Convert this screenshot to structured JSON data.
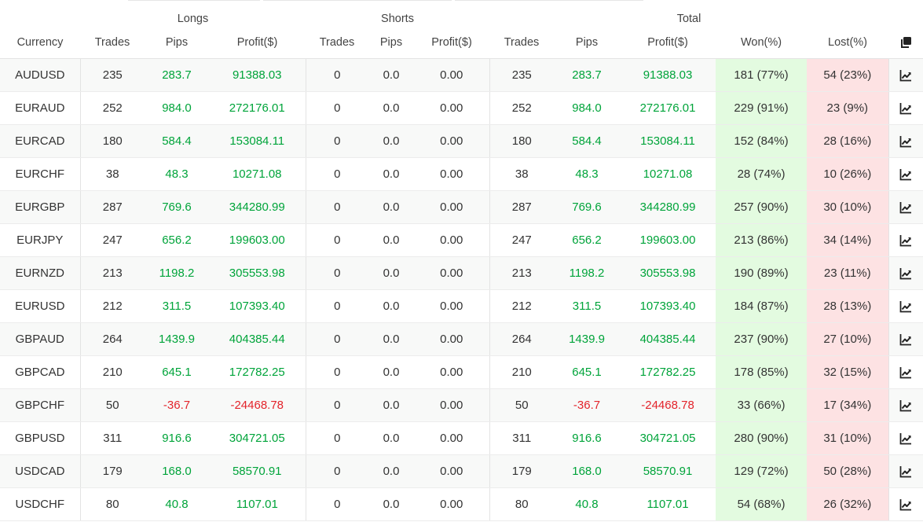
{
  "header": {
    "groups": {
      "longs": "Longs",
      "shorts": "Shorts",
      "total": "Total"
    },
    "columns": {
      "currency": "Currency",
      "longs_trades": "Trades",
      "longs_pips": "Pips",
      "longs_profit": "Profit($)",
      "shorts_trades": "Trades",
      "shorts_pips": "Pips",
      "shorts_profit": "Profit($)",
      "total_trades": "Trades",
      "total_pips": "Pips",
      "total_profit": "Profit($)",
      "won": "Won(%)",
      "lost": "Lost(%)"
    },
    "copy_icon": "copy-icon"
  },
  "colors": {
    "positive": "#00a43a",
    "negative": "#e3242b",
    "won_bg": "#e3fbe0",
    "lost_bg": "#fde2e3"
  },
  "rows": [
    {
      "currency": "AUDUSD",
      "l_trades": "235",
      "l_pips": "283.7",
      "l_profit": "91388.03",
      "s_trades": "0",
      "s_pips": "0.0",
      "s_profit": "0.00",
      "t_trades": "235",
      "t_pips": "283.7",
      "t_profit": "91388.03",
      "won": "181 (77%)",
      "lost": "54 (23%)",
      "sign": "pos"
    },
    {
      "currency": "EURAUD",
      "l_trades": "252",
      "l_pips": "984.0",
      "l_profit": "272176.01",
      "s_trades": "0",
      "s_pips": "0.0",
      "s_profit": "0.00",
      "t_trades": "252",
      "t_pips": "984.0",
      "t_profit": "272176.01",
      "won": "229 (91%)",
      "lost": "23 (9%)",
      "sign": "pos"
    },
    {
      "currency": "EURCAD",
      "l_trades": "180",
      "l_pips": "584.4",
      "l_profit": "153084.11",
      "s_trades": "0",
      "s_pips": "0.0",
      "s_profit": "0.00",
      "t_trades": "180",
      "t_pips": "584.4",
      "t_profit": "153084.11",
      "won": "152 (84%)",
      "lost": "28 (16%)",
      "sign": "pos"
    },
    {
      "currency": "EURCHF",
      "l_trades": "38",
      "l_pips": "48.3",
      "l_profit": "10271.08",
      "s_trades": "0",
      "s_pips": "0.0",
      "s_profit": "0.00",
      "t_trades": "38",
      "t_pips": "48.3",
      "t_profit": "10271.08",
      "won": "28 (74%)",
      "lost": "10 (26%)",
      "sign": "pos"
    },
    {
      "currency": "EURGBP",
      "l_trades": "287",
      "l_pips": "769.6",
      "l_profit": "344280.99",
      "s_trades": "0",
      "s_pips": "0.0",
      "s_profit": "0.00",
      "t_trades": "287",
      "t_pips": "769.6",
      "t_profit": "344280.99",
      "won": "257 (90%)",
      "lost": "30 (10%)",
      "sign": "pos"
    },
    {
      "currency": "EURJPY",
      "l_trades": "247",
      "l_pips": "656.2",
      "l_profit": "199603.00",
      "s_trades": "0",
      "s_pips": "0.0",
      "s_profit": "0.00",
      "t_trades": "247",
      "t_pips": "656.2",
      "t_profit": "199603.00",
      "won": "213 (86%)",
      "lost": "34 (14%)",
      "sign": "pos"
    },
    {
      "currency": "EURNZD",
      "l_trades": "213",
      "l_pips": "1198.2",
      "l_profit": "305553.98",
      "s_trades": "0",
      "s_pips": "0.0",
      "s_profit": "0.00",
      "t_trades": "213",
      "t_pips": "1198.2",
      "t_profit": "305553.98",
      "won": "190 (89%)",
      "lost": "23 (11%)",
      "sign": "pos"
    },
    {
      "currency": "EURUSD",
      "l_trades": "212",
      "l_pips": "311.5",
      "l_profit": "107393.40",
      "s_trades": "0",
      "s_pips": "0.0",
      "s_profit": "0.00",
      "t_trades": "212",
      "t_pips": "311.5",
      "t_profit": "107393.40",
      "won": "184 (87%)",
      "lost": "28 (13%)",
      "sign": "pos"
    },
    {
      "currency": "GBPAUD",
      "l_trades": "264",
      "l_pips": "1439.9",
      "l_profit": "404385.44",
      "s_trades": "0",
      "s_pips": "0.0",
      "s_profit": "0.00",
      "t_trades": "264",
      "t_pips": "1439.9",
      "t_profit": "404385.44",
      "won": "237 (90%)",
      "lost": "27 (10%)",
      "sign": "pos"
    },
    {
      "currency": "GBPCAD",
      "l_trades": "210",
      "l_pips": "645.1",
      "l_profit": "172782.25",
      "s_trades": "0",
      "s_pips": "0.0",
      "s_profit": "0.00",
      "t_trades": "210",
      "t_pips": "645.1",
      "t_profit": "172782.25",
      "won": "178 (85%)",
      "lost": "32 (15%)",
      "sign": "pos"
    },
    {
      "currency": "GBPCHF",
      "l_trades": "50",
      "l_pips": "-36.7",
      "l_profit": "-24468.78",
      "s_trades": "0",
      "s_pips": "0.0",
      "s_profit": "0.00",
      "t_trades": "50",
      "t_pips": "-36.7",
      "t_profit": "-24468.78",
      "won": "33 (66%)",
      "lost": "17 (34%)",
      "sign": "neg"
    },
    {
      "currency": "GBPUSD",
      "l_trades": "311",
      "l_pips": "916.6",
      "l_profit": "304721.05",
      "s_trades": "0",
      "s_pips": "0.0",
      "s_profit": "0.00",
      "t_trades": "311",
      "t_pips": "916.6",
      "t_profit": "304721.05",
      "won": "280 (90%)",
      "lost": "31 (10%)",
      "sign": "pos"
    },
    {
      "currency": "USDCAD",
      "l_trades": "179",
      "l_pips": "168.0",
      "l_profit": "58570.91",
      "s_trades": "0",
      "s_pips": "0.0",
      "s_profit": "0.00",
      "t_trades": "179",
      "t_pips": "168.0",
      "t_profit": "58570.91",
      "won": "129 (72%)",
      "lost": "50 (28%)",
      "sign": "pos"
    },
    {
      "currency": "USDCHF",
      "l_trades": "80",
      "l_pips": "40.8",
      "l_profit": "1107.01",
      "s_trades": "0",
      "s_pips": "0.0",
      "s_profit": "0.00",
      "t_trades": "80",
      "t_pips": "40.8",
      "t_profit": "1107.01",
      "won": "54 (68%)",
      "lost": "26 (32%)",
      "sign": "pos"
    }
  ],
  "row_icon": "chart-line-icon"
}
